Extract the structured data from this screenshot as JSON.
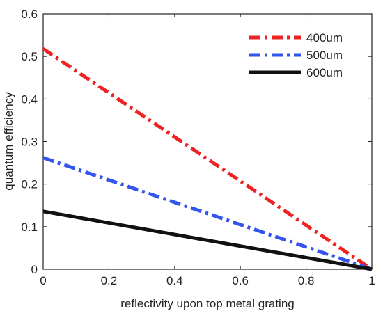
{
  "chart_data": {
    "type": "line",
    "xlabel": "reflectivity upon top metal grating",
    "ylabel": "quantum efficiency",
    "xlim": [
      0,
      1
    ],
    "ylim": [
      0,
      0.6
    ],
    "xticks": [
      0,
      0.2,
      0.4,
      0.6,
      0.8,
      1
    ],
    "yticks": [
      0,
      0.1,
      0.2,
      0.3,
      0.4,
      0.5,
      0.6
    ],
    "x_tick_labels": [
      "0",
      "0.2",
      "0.4",
      "0.6",
      "0.8",
      "1"
    ],
    "y_tick_labels": [
      "0",
      "0.1",
      "0.2",
      "0.3",
      "0.4",
      "0.5",
      "0.6"
    ],
    "grid": false,
    "legend_position": "top-right",
    "series": [
      {
        "name": "400um",
        "x": [
          0,
          1
        ],
        "y": [
          0.518,
          0
        ],
        "color": "#ee2222",
        "style": "dash-dot"
      },
      {
        "name": "500um",
        "x": [
          0,
          1
        ],
        "y": [
          0.262,
          0
        ],
        "color": "#3355ee",
        "style": "dash-dot"
      },
      {
        "name": "600um",
        "x": [
          0,
          1
        ],
        "y": [
          0.136,
          0
        ],
        "color": "#111111",
        "style": "solid"
      }
    ]
  }
}
